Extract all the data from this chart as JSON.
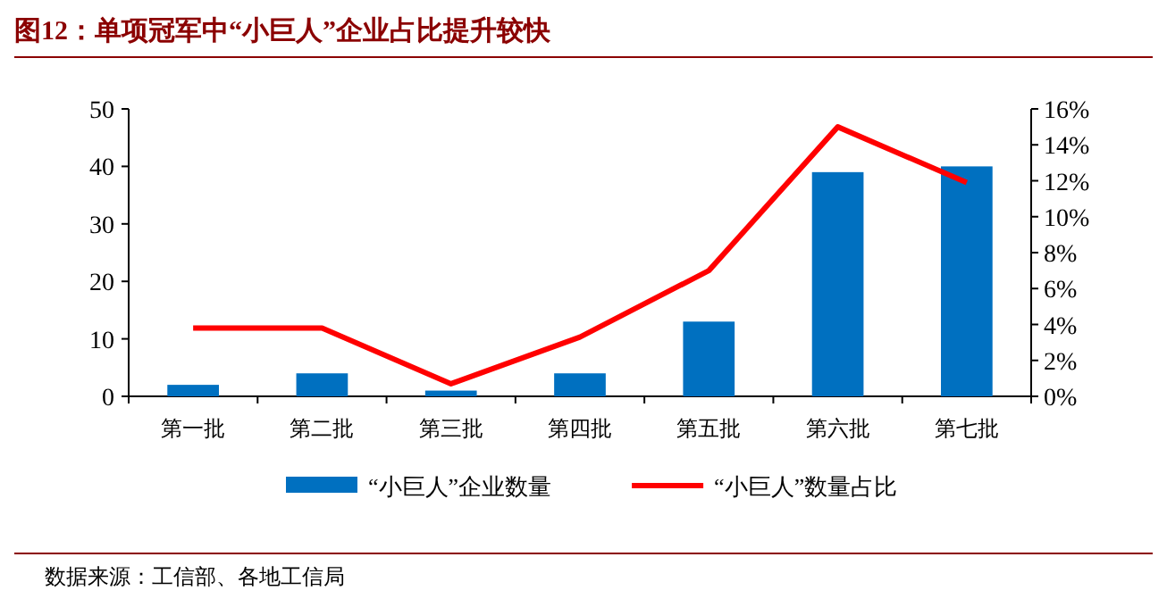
{
  "chart_data": {
    "type": "bar",
    "title": "图12：单项冠军中“小巨人”企业占比提升较快",
    "categories": [
      "第一批",
      "第二批",
      "第三批",
      "第四批",
      "第五批",
      "第六批",
      "第七批"
    ],
    "series": [
      {
        "name": "“小巨人”企业数量",
        "color": "#0070c0",
        "values": [
          2,
          4,
          1,
          4,
          13,
          39,
          40
        ]
      },
      {
        "name": "“小巨人”数量占比",
        "type": "line",
        "axis": "y2",
        "color": "#ff0000",
        "values": [
          3.8,
          3.8,
          0.7,
          3.3,
          7.0,
          15.0,
          11.9
        ]
      }
    ],
    "ylim": [
      0,
      50
    ],
    "yticks": [
      0,
      10,
      20,
      30,
      40,
      50
    ],
    "y2lim": [
      0,
      16
    ],
    "y2ticks": [
      {
        "value": 0,
        "label": "0%"
      },
      {
        "value": 2,
        "label": "2%"
      },
      {
        "value": 4,
        "label": "4%"
      },
      {
        "value": 6,
        "label": "6%"
      },
      {
        "value": 8,
        "label": "8%"
      },
      {
        "value": 10,
        "label": "10%"
      },
      {
        "value": 12,
        "label": "12%"
      },
      {
        "value": 14,
        "label": "14%"
      },
      {
        "value": 16,
        "label": "16%"
      }
    ],
    "legend": "bottom",
    "grid": false,
    "annotations": [
      "数据来源：工信部、各地工信局"
    ]
  }
}
